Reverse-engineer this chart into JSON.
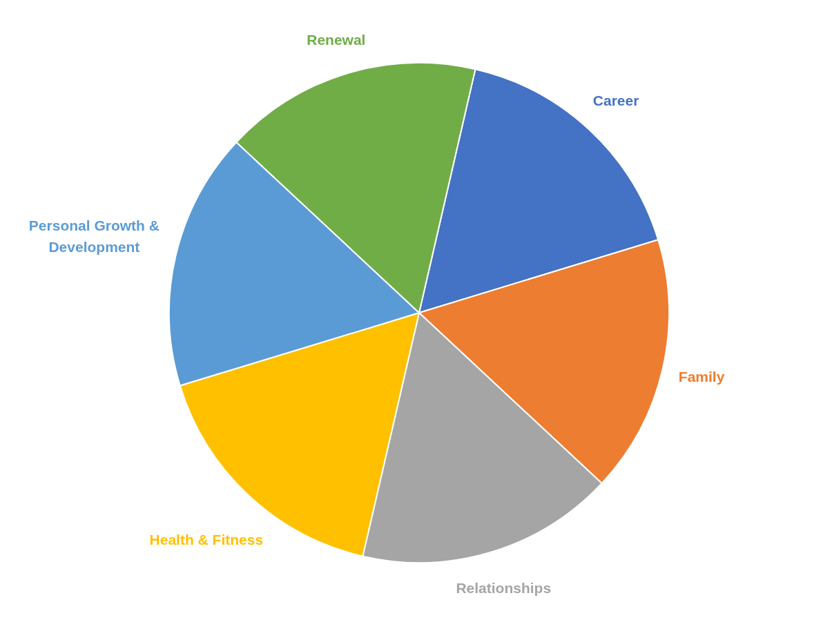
{
  "chart_data": {
    "type": "pie",
    "categories": [
      "Career",
      "Family",
      "Relationships",
      "Health & Fitness",
      "Personal Growth & Development",
      "Renewal"
    ],
    "values": [
      16.67,
      16.67,
      16.67,
      16.67,
      16.66,
      16.66
    ],
    "colors": [
      "#4472c4",
      "#ed7d31",
      "#a5a5a5",
      "#ffc000",
      "#5b9bd5",
      "#70ad47"
    ],
    "legend": false
  }
}
